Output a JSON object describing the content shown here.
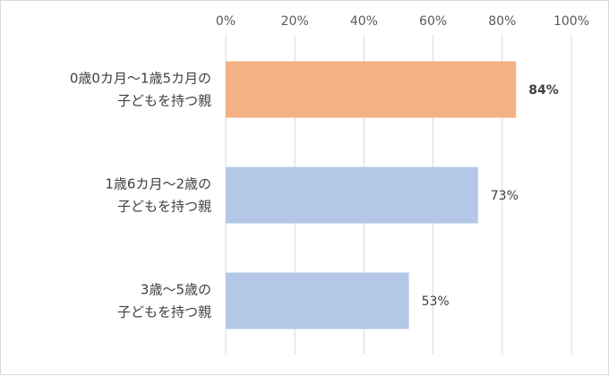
{
  "chart_data": {
    "type": "bar",
    "orientation": "horizontal",
    "xlim": [
      0,
      100
    ],
    "x_ticks": [
      "0%",
      "20%",
      "40%",
      "60%",
      "80%",
      "100%"
    ],
    "x_tick_values": [
      0,
      20,
      40,
      60,
      80,
      100
    ],
    "grid": true,
    "axis_position": "top",
    "categories": [
      [
        "0歳0カ月〜1歳5カ月の",
        "子どもを持つ親"
      ],
      [
        "1歳6カ月〜2歳の",
        "子どもを持つ親"
      ],
      [
        "3歳〜5歳の",
        "子どもを持つ親"
      ]
    ],
    "values": [
      84,
      73,
      53
    ],
    "data_labels": [
      "84%",
      "73%",
      "53%"
    ],
    "bar_colors": [
      "#f4b183",
      "#b4c7e7",
      "#b4c7e7"
    ],
    "highlight_index": 0,
    "title": "",
    "xlabel": "",
    "ylabel": ""
  }
}
